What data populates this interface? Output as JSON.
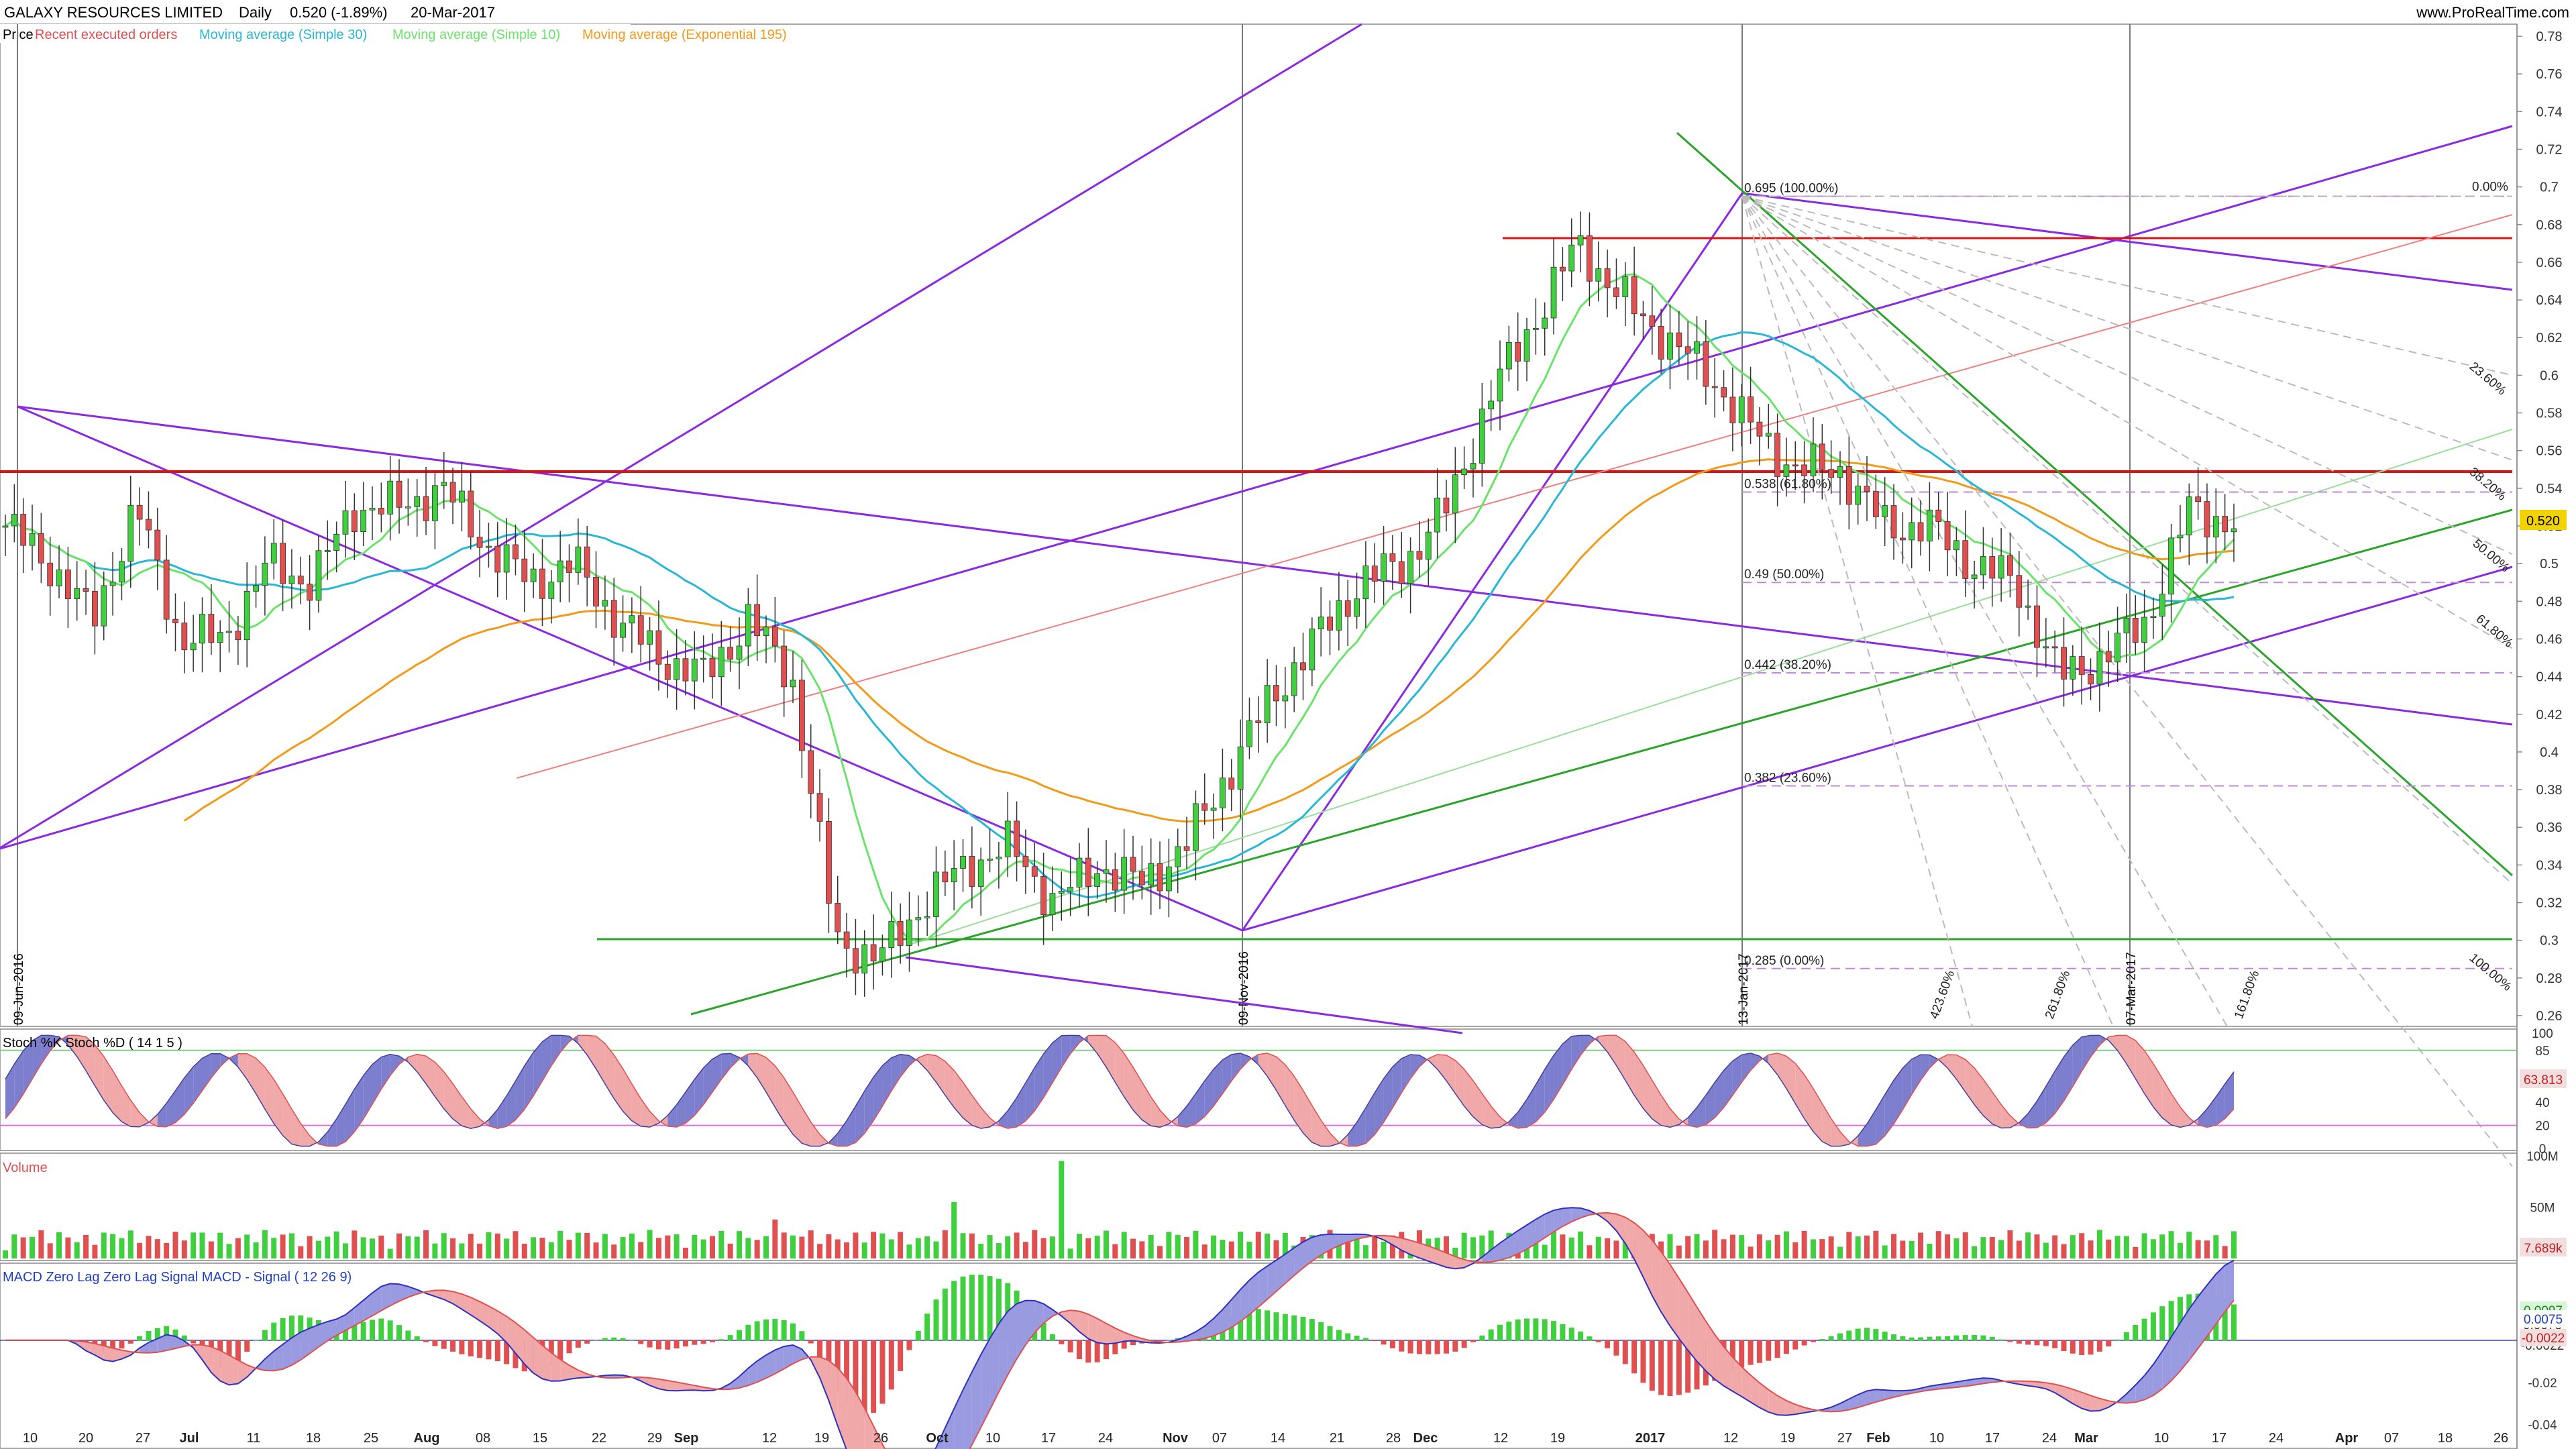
{
  "header": {
    "symbol": "GALAXY RESOURCES LIMITED",
    "period": "Daily",
    "quote": "0.520 (-1.89%)",
    "date": "20-Mar-2017",
    "site": "www.ProRealTime.com"
  },
  "legend": {
    "price": "Price",
    "orders": "Recent executed orders",
    "ma30": "Moving average (Simple 30)",
    "ma10": "Moving average (Simple 10)",
    "ema195": "Moving average (Exponential 195)"
  },
  "colors": {
    "up": "#3fcf3f",
    "down": "#e05050",
    "purple": "#8a2be2",
    "red": "#e01010",
    "green": "#2aa52a",
    "ma30": "#29b7d3",
    "ma10": "#6be36b",
    "ema": "#f29a1a"
  },
  "chart_data": [
    {
      "type": "candlestick",
      "panel": "price",
      "y_ticks": [
        "0.78",
        "0.76",
        "0.74",
        "0.72",
        "0.7",
        "0.68",
        "0.66",
        "0.64",
        "0.62",
        "0.6",
        "0.58",
        "0.56",
        "0.54",
        "0.52",
        "0.5",
        "0.48",
        "0.46",
        "0.44",
        "0.42",
        "0.4",
        "0.38",
        "0.36",
        "0.34",
        "0.32",
        "0.3",
        "0.28",
        "0.26"
      ],
      "ylim": [
        0.255,
        0.785
      ],
      "last_value": "0.520",
      "price_key": {
        "0.695": 0.695,
        "0.538": 0.538,
        "0.49": 0.49,
        "0.442": 0.442,
        "0.382": 0.382,
        "0.285": 0.285
      },
      "fib_labels": [
        "0.695 (100.00%)",
        "0.538 (61.80%)",
        "0.49 (50.00%)",
        "0.442 (38.20%)",
        "0.382 (23.60%)",
        "0.285 (0.00%)"
      ],
      "fib_right_labels": [
        "0.00%",
        "23.60%",
        "38.20%",
        "50.00%",
        "61.80%",
        "100.00%"
      ],
      "fan_labels": [
        "423.60%",
        "261.80%",
        "161.80%"
      ],
      "vertical_dates": [
        "09-Jun-2016",
        "09-Nov-2016",
        "13-Jan-2017",
        "07-Mar-2017"
      ],
      "close_key": [
        0.52,
        0.5,
        0.47,
        0.53,
        0.46,
        0.46,
        0.5,
        0.49,
        0.53,
        0.53,
        0.54,
        0.51,
        0.49,
        0.5,
        0.47,
        0.45,
        0.44,
        0.47,
        0.44,
        0.3,
        0.29,
        0.32,
        0.34,
        0.35,
        0.32,
        0.34,
        0.33,
        0.35,
        0.39,
        0.43,
        0.46,
        0.49,
        0.5,
        0.53,
        0.59,
        0.63,
        0.67,
        0.64,
        0.62,
        0.6,
        0.57,
        0.55,
        0.55,
        0.52,
        0.52,
        0.5,
        0.49,
        0.44,
        0.45,
        0.47,
        0.53,
        0.52
      ]
    },
    {
      "type": "area",
      "panel": "stochastic",
      "title": "Stoch %K Stoch %D ( 14 1 5 )",
      "y_ticks": [
        "100",
        "85",
        "60",
        "40",
        "20",
        "0"
      ],
      "ylim": [
        0,
        100
      ],
      "last_value": "63.813"
    },
    {
      "type": "bar",
      "panel": "volume",
      "title": "Volume",
      "y_ticks": [
        "100M",
        "50M"
      ],
      "ylim": [
        0,
        100
      ],
      "last_value": "7.689k"
    },
    {
      "type": "area",
      "panel": "macd",
      "title": "MACD Zero Lag Zero Lag Signal MACD - Signal ( 12 26 9)",
      "y_ticks": [
        "0.0097",
        "0.0075",
        "-0.0022",
        "-0.02",
        "-0.04"
      ],
      "ylim": [
        -0.05,
        0.035
      ],
      "last_values": [
        "0.0097",
        "0.0075",
        "-0.0022"
      ]
    }
  ],
  "x_axis": {
    "labels": [
      "10",
      "20",
      "27",
      "Jul",
      "11",
      "18",
      "25",
      "Aug",
      "08",
      "15",
      "22",
      "29",
      "Sep",
      "12",
      "19",
      "26",
      "Oct",
      "10",
      "17",
      "24",
      "Nov",
      "07",
      "14",
      "21",
      "28",
      "Dec",
      "12",
      "19",
      "2017",
      "12",
      "19",
      "27",
      "Feb",
      "10",
      "17",
      "24",
      "Mar",
      "10",
      "17",
      "24",
      "Apr",
      "07",
      "18",
      "26"
    ]
  }
}
